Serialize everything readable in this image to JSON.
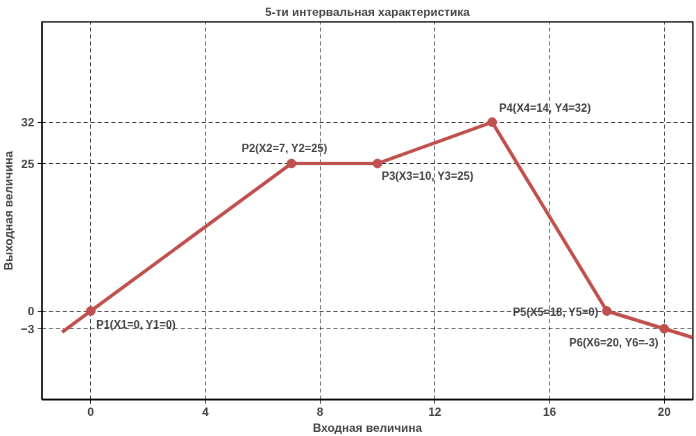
{
  "chart_data": {
    "type": "line",
    "title": "5-ти интервальная характеристика",
    "xlabel": "Входная величина",
    "ylabel": "Выходная величина",
    "xlim": [
      -1.7,
      21
    ],
    "ylim": [
      -15,
      49
    ],
    "xticks": [
      0,
      4,
      8,
      12,
      16,
      20
    ],
    "yticks": [
      -3,
      0,
      25,
      32
    ],
    "grid": true,
    "line_style": "solid",
    "marker": "none",
    "series": [
      {
        "color": "#c0504d",
        "x": [
          -1,
          0,
          7,
          10,
          14,
          18,
          20,
          21
        ],
        "values": [
          -3.6,
          0,
          25,
          25,
          32,
          0,
          -3,
          -4.5
        ]
      },
      {
        "type": "scatter",
        "marker": "circle",
        "color": "#c0504d",
        "x": [
          0,
          7,
          10,
          14,
          18,
          20
        ],
        "values": [
          0,
          25,
          25,
          32,
          0,
          -3
        ]
      }
    ],
    "annotations": [
      {
        "text": "P1(X1=0, Y1=0)",
        "x": 0,
        "y": 0
      },
      {
        "text": "P2(X2=7, Y2=25)",
        "x": 7,
        "y": 25
      },
      {
        "text": "P3(X3=10, Y3=25)",
        "x": 10,
        "y": 25
      },
      {
        "text": "P4(X4=14, Y4=32)",
        "x": 14,
        "y": 32
      },
      {
        "text": "P5(X5=18, Y5=0)",
        "x": 18,
        "y": 0
      },
      {
        "text": "P6(X6=20, Y6=-3)",
        "x": 20,
        "y": -3
      }
    ]
  }
}
